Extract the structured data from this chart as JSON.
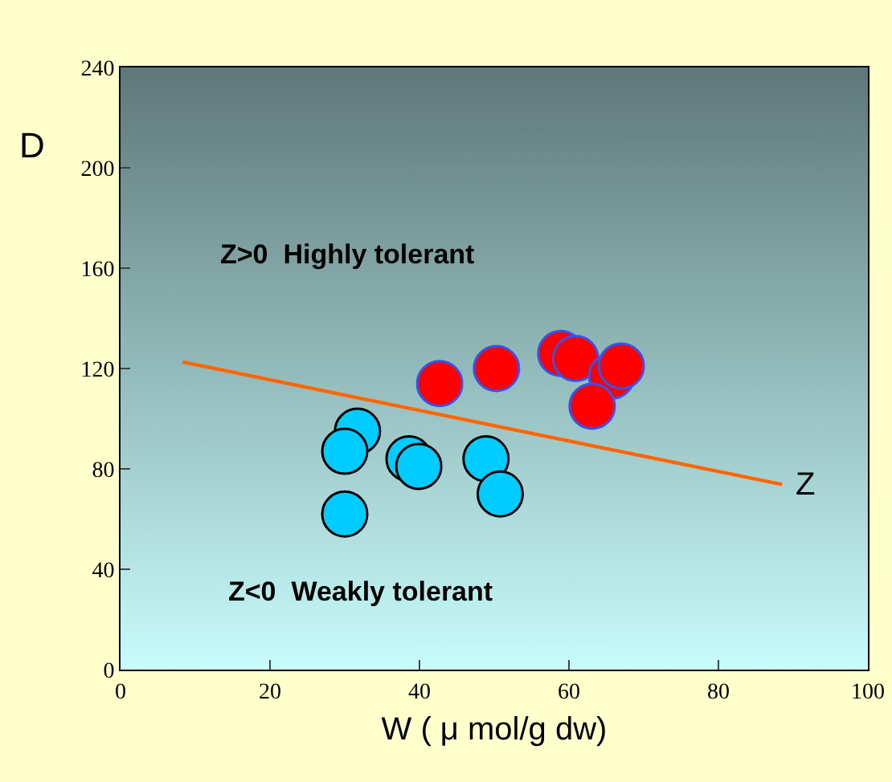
{
  "chart_data": {
    "type": "scatter",
    "xlabel": "W ( μ mol/g dw)",
    "ylabel": "D",
    "annotations": [
      "Z>0  Highly tolerant",
      "Z<0  Weakly tolerant"
    ],
    "xlim": [
      0,
      100
    ],
    "xticks": [
      0,
      20,
      40,
      60,
      80,
      100
    ],
    "ylim": [
      0,
      240
    ],
    "yticks": [
      0,
      40,
      80,
      120,
      160,
      200,
      240
    ],
    "grid": false,
    "legend": false,
    "marker": "circle",
    "series": [
      {
        "color": "#00ccff",
        "x": [
          31.7,
          30.0,
          30.0,
          38.6,
          39.9,
          48.9,
          50.8
        ],
        "values": [
          95,
          87,
          62,
          84,
          81,
          84,
          70
        ]
      },
      {
        "color": "#ff0000",
        "x": [
          42.7,
          50.3,
          58.9,
          60.9,
          65.7,
          67.0,
          63.1
        ],
        "values": [
          114,
          120,
          126,
          124,
          117,
          121,
          105
        ]
      },
      {
        "type": "line",
        "name": "Z",
        "color": "#ff6600",
        "marker": "none",
        "x": [
          8.3,
          88.5
        ],
        "values": [
          122.6,
          73.8
        ]
      }
    ]
  }
}
